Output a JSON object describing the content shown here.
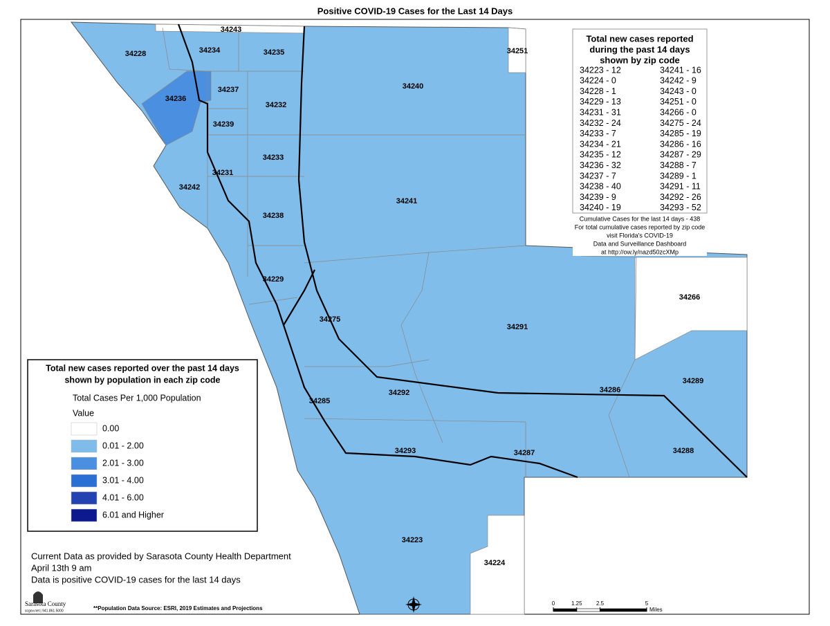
{
  "title": "Positive COVID-19 Cases for the Last 14 Days",
  "map": {
    "base_color": "#80bdea",
    "zips": [
      {
        "label": "34228"
      },
      {
        "label": "34234"
      },
      {
        "label": "34243",
        "color": "#ffffff"
      },
      {
        "label": "34235"
      },
      {
        "label": "34251",
        "color": "#ffffff"
      },
      {
        "label": "34240"
      },
      {
        "label": "34237"
      },
      {
        "label": "34236",
        "color": "#4a8fe0"
      },
      {
        "label": "34232"
      },
      {
        "label": "34239"
      },
      {
        "label": "34233"
      },
      {
        "label": "34231"
      },
      {
        "label": "34242"
      },
      {
        "label": "34241"
      },
      {
        "label": "34238"
      },
      {
        "label": "34229"
      },
      {
        "label": "34266",
        "color": "#ffffff"
      },
      {
        "label": "34275"
      },
      {
        "label": "34291"
      },
      {
        "label": "34289"
      },
      {
        "label": "34286"
      },
      {
        "label": "34292"
      },
      {
        "label": "34285"
      },
      {
        "label": "34293"
      },
      {
        "label": "34287"
      },
      {
        "label": "34288"
      },
      {
        "label": "34223"
      },
      {
        "label": "34224",
        "color": "#ffffff"
      }
    ]
  },
  "legend": {
    "title": [
      "Total new cases reported over the past 14 days",
      "shown by population in each zip code"
    ],
    "subtitle": "Total Cases Per 1,000 Population",
    "field": "Value",
    "classes": [
      {
        "label": "0.00",
        "color": "#ffffff"
      },
      {
        "label": "0.01 - 2.00",
        "color": "#80bcea"
      },
      {
        "label": "2.01 - 3.00",
        "color": "#4a8fe0"
      },
      {
        "label": "3.01 - 4.00",
        "color": "#2a6fd4"
      },
      {
        "label": "4.01 - 6.00",
        "color": "#2443b3"
      },
      {
        "label": "6.01 and Higher",
        "color": "#0d1a8f"
      }
    ]
  },
  "case_list": {
    "title": [
      "Total new cases reported",
      "during the past 14 days",
      "shown by zip code"
    ],
    "rows": [
      [
        "34223 - 12",
        "34241 - 16"
      ],
      [
        "34224 - 0",
        "34242 - 9"
      ],
      [
        "34228 - 1",
        "34243 - 0"
      ],
      [
        "34229 - 13",
        "34251 - 0"
      ],
      [
        "34231 - 31",
        "34266 - 0"
      ],
      [
        "34232 - 24",
        "34275 - 24"
      ],
      [
        "34233 - 7",
        "34285 - 19"
      ],
      [
        "34234 - 21",
        "34286 - 16"
      ],
      [
        "34235 - 12",
        "34287 - 29"
      ],
      [
        "34236 - 32",
        "34288 - 7"
      ],
      [
        "34237 - 7",
        "34289 - 1"
      ],
      [
        "34238 - 40",
        "34291 - 11"
      ],
      [
        "34239 - 9",
        "34292 - 26"
      ],
      [
        "34240 - 19",
        "34293 - 52"
      ]
    ],
    "notes": [
      "Cumulative Cases for the last 14 days - 438",
      "For total cumulative cases reported by zip code",
      "visit Florida's COVID-19",
      "Data and Surveillance Dashboard",
      "at http://ow.ly/nazd50zcXMp"
    ]
  },
  "notes": [
    "Current Data as provided by Sarasota County Health Department",
    "April 13th 9 am",
    "Data is positive COVID-19 cases for the last 14 days"
  ],
  "source": "**Population Data Source: ESRI, 2019 Estimates and Projections",
  "logo": {
    "name": "Sarasota County",
    "contact": "scgov.net | 941.861.5000"
  },
  "scale": {
    "ticks": [
      0,
      1.25,
      2.5,
      5
    ],
    "unit": "Miles"
  }
}
